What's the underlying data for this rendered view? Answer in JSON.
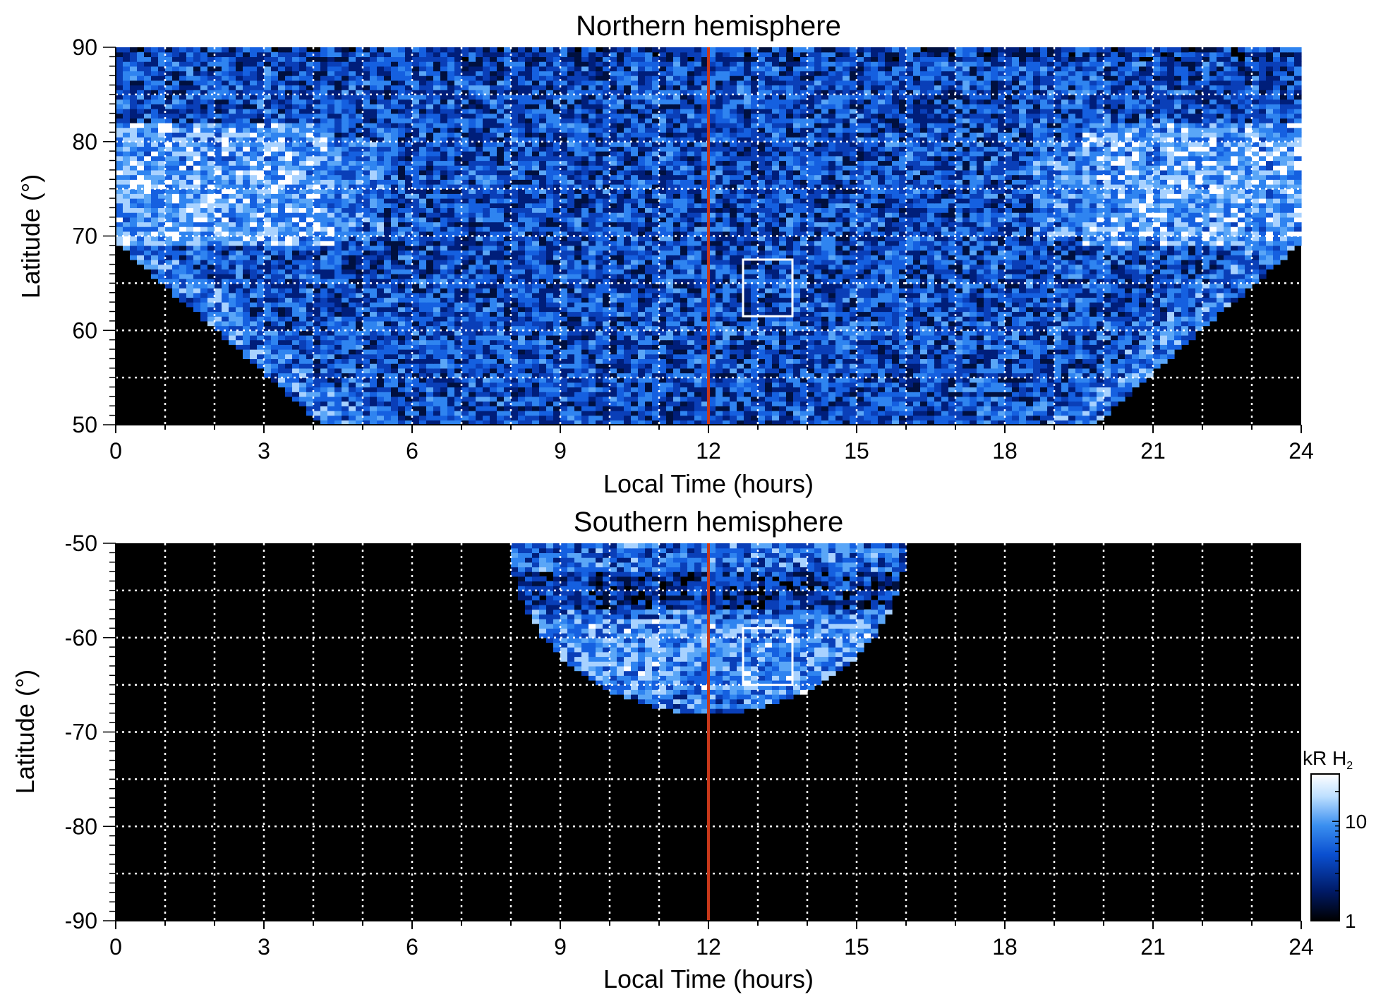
{
  "chart_data": [
    {
      "type": "heatmap",
      "title": "Northern hemisphere",
      "xlabel": "Local Time (hours)",
      "ylabel": "Latitude (°)",
      "xlim": [
        0,
        24
      ],
      "ylim": [
        50,
        90
      ],
      "xticks": [
        "0",
        "3",
        "6",
        "9",
        "12",
        "15",
        "18",
        "21",
        "24"
      ],
      "yticks": [
        "50",
        "60",
        "70",
        "80",
        "90"
      ],
      "grid": true,
      "vertical_marker": {
        "x": 12,
        "color": "#c8381a"
      },
      "highlight_box": {
        "x": [
          12.7,
          13.7
        ],
        "y": [
          61.5,
          67.5
        ],
        "color": "#ffffff"
      },
      "coverage": {
        "center_lt": 12,
        "half_width_lt_at_50": 7.8,
        "tip_lat_at_edges": 69.3
      },
      "bright_region_lat": [
        70,
        82
      ]
    },
    {
      "type": "heatmap",
      "title": "Southern hemisphere",
      "xlabel": "Local Time (hours)",
      "ylabel": "Latitude (°)",
      "xlim": [
        0,
        24
      ],
      "ylim": [
        -90,
        -50
      ],
      "xticks": [
        "0",
        "3",
        "6",
        "9",
        "12",
        "15",
        "18",
        "21",
        "24"
      ],
      "yticks": [
        "-90",
        "-80",
        "-70",
        "-60",
        "-50"
      ],
      "grid": true,
      "vertical_marker": {
        "x": 12,
        "color": "#c8381a"
      },
      "highlight_box": {
        "x": [
          12.7,
          13.7
        ],
        "y": [
          -65,
          -59
        ],
        "color": "#ffffff"
      },
      "coverage": {
        "center_lt": 12,
        "half_width_lt_at_-50": 4.0,
        "tip_lat": -68
      },
      "dark_band_lat": [
        -57,
        -53
      ]
    }
  ],
  "colorbar": {
    "title": "kR H",
    "title_subscript": "2",
    "scale": "log",
    "range": [
      1,
      30
    ],
    "tick_labels": [
      "1",
      "10"
    ],
    "colors": [
      "#000000",
      "#001a66",
      "#0a4fd0",
      "#3a8ff0",
      "#bfe0ff",
      "#ffffff"
    ]
  }
}
